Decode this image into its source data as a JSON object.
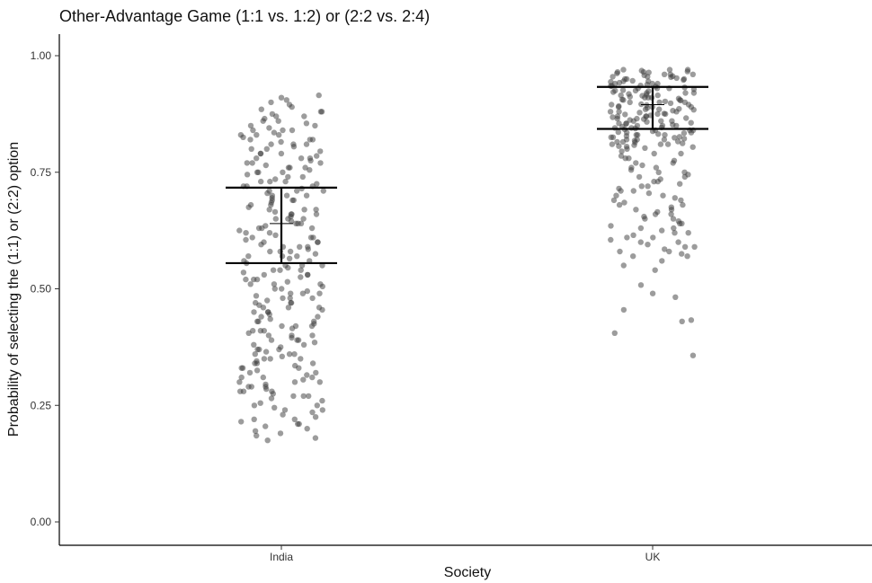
{
  "chart_data": {
    "type": "scatter",
    "title": "Other-Advantage Game (1:1 vs. 1:2) or (2:2 vs. 2:4)",
    "xlabel": "Society",
    "ylabel": "Probability of selecting the (1:1) or (2:2) option",
    "categories": [
      "India",
      "UK"
    ],
    "ylim": [
      0.0,
      1.05
    ],
    "yticks": [
      0.0,
      0.25,
      0.5,
      0.75,
      1.0
    ],
    "ytick_labels": [
      "0.00",
      "0.25",
      "0.50",
      "0.75",
      "1.00"
    ],
    "grid": false,
    "legend": "none",
    "point_color": "#3a3a3a",
    "summary": [
      {
        "category": "India",
        "mean": 0.64,
        "lower": 0.555,
        "upper": 0.717
      },
      {
        "category": "UK",
        "mean": 0.895,
        "lower": 0.843,
        "upper": 0.933
      }
    ],
    "series": [
      {
        "category": "India",
        "jitter_y": [
          0.915,
          0.91,
          0.905,
          0.9,
          0.895,
          0.89,
          0.885,
          0.88,
          0.875,
          0.87,
          0.865,
          0.86,
          0.855,
          0.85,
          0.845,
          0.84,
          0.835,
          0.83,
          0.825,
          0.82,
          0.815,
          0.81,
          0.805,
          0.8,
          0.795,
          0.79,
          0.785,
          0.78,
          0.775,
          0.77,
          0.765,
          0.76,
          0.755,
          0.75,
          0.745,
          0.74,
          0.735,
          0.73,
          0.725,
          0.72,
          0.715,
          0.71,
          0.705,
          0.7,
          0.695,
          0.69,
          0.685,
          0.68,
          0.675,
          0.67,
          0.665,
          0.66,
          0.655,
          0.65,
          0.645,
          0.64,
          0.635,
          0.63,
          0.625,
          0.62,
          0.615,
          0.61,
          0.605,
          0.6,
          0.595,
          0.59,
          0.585,
          0.58,
          0.575,
          0.57,
          0.565,
          0.56,
          0.555,
          0.55,
          0.545,
          0.54,
          0.535,
          0.53,
          0.525,
          0.52,
          0.515,
          0.51,
          0.505,
          0.5,
          0.495,
          0.49,
          0.485,
          0.48,
          0.475,
          0.47,
          0.465,
          0.46,
          0.455,
          0.45,
          0.445,
          0.44,
          0.435,
          0.43,
          0.425,
          0.42,
          0.415,
          0.41,
          0.405,
          0.4,
          0.395,
          0.39,
          0.385,
          0.38,
          0.375,
          0.37,
          0.365,
          0.36,
          0.355,
          0.35,
          0.345,
          0.34,
          0.335,
          0.33,
          0.325,
          0.32,
          0.315,
          0.31,
          0.305,
          0.3,
          0.295,
          0.29,
          0.285,
          0.28,
          0.275,
          0.27,
          0.265,
          0.26,
          0.255,
          0.25,
          0.245,
          0.24,
          0.235,
          0.23,
          0.225,
          0.22,
          0.215,
          0.21,
          0.205,
          0.2,
          0.195,
          0.19,
          0.185,
          0.18,
          0.175,
          0.86,
          0.84,
          0.82,
          0.8,
          0.78,
          0.76,
          0.74,
          0.72,
          0.7,
          0.68,
          0.66,
          0.64,
          0.62,
          0.6,
          0.58,
          0.56,
          0.54,
          0.52,
          0.5,
          0.48,
          0.46,
          0.44,
          0.42,
          0.4,
          0.38,
          0.36,
          0.34,
          0.32,
          0.3,
          0.28,
          0.85,
          0.83,
          0.81,
          0.79,
          0.77,
          0.75,
          0.73,
          0.71,
          0.69,
          0.67,
          0.65,
          0.63,
          0.61,
          0.59,
          0.57,
          0.55,
          0.53,
          0.51,
          0.49,
          0.47,
          0.45,
          0.43,
          0.41,
          0.39,
          0.37,
          0.35,
          0.33,
          0.31,
          0.29,
          0.27,
          0.88,
          0.82,
          0.76,
          0.7,
          0.64,
          0.58,
          0.52,
          0.46,
          0.4,
          0.34,
          0.28,
          0.22,
          0.87,
          0.81,
          0.75,
          0.69,
          0.63,
          0.57,
          0.51,
          0.45,
          0.39,
          0.33,
          0.27,
          0.21,
          0.84,
          0.78,
          0.72,
          0.66,
          0.6,
          0.54,
          0.48,
          0.42,
          0.36,
          0.3,
          0.24,
          0.83,
          0.77,
          0.71,
          0.65,
          0.59,
          0.53,
          0.47,
          0.41,
          0.35,
          0.29,
          0.79,
          0.73,
          0.67,
          0.61,
          0.55,
          0.49,
          0.43,
          0.37,
          0.31,
          0.25
        ]
      },
      {
        "category": "UK",
        "jitter_y": [
          0.97,
          0.968,
          0.966,
          0.964,
          0.962,
          0.96,
          0.958,
          0.956,
          0.954,
          0.952,
          0.95,
          0.948,
          0.946,
          0.944,
          0.942,
          0.94,
          0.938,
          0.936,
          0.934,
          0.932,
          0.93,
          0.928,
          0.926,
          0.924,
          0.922,
          0.92,
          0.918,
          0.916,
          0.914,
          0.912,
          0.91,
          0.908,
          0.906,
          0.904,
          0.902,
          0.9,
          0.898,
          0.896,
          0.894,
          0.892,
          0.89,
          0.888,
          0.886,
          0.884,
          0.882,
          0.88,
          0.878,
          0.876,
          0.874,
          0.872,
          0.87,
          0.868,
          0.866,
          0.864,
          0.862,
          0.86,
          0.858,
          0.856,
          0.854,
          0.852,
          0.85,
          0.848,
          0.846,
          0.844,
          0.842,
          0.84,
          0.838,
          0.836,
          0.834,
          0.832,
          0.83,
          0.828,
          0.826,
          0.824,
          0.822,
          0.82,
          0.818,
          0.816,
          0.814,
          0.812,
          0.81,
          0.808,
          0.806,
          0.804,
          0.802,
          0.8,
          0.97,
          0.965,
          0.96,
          0.955,
          0.95,
          0.945,
          0.94,
          0.935,
          0.93,
          0.925,
          0.92,
          0.915,
          0.91,
          0.905,
          0.9,
          0.895,
          0.89,
          0.885,
          0.88,
          0.875,
          0.87,
          0.865,
          0.86,
          0.855,
          0.85,
          0.845,
          0.84,
          0.835,
          0.83,
          0.825,
          0.82,
          0.815,
          0.81,
          0.805,
          0.97,
          0.96,
          0.95,
          0.94,
          0.93,
          0.92,
          0.91,
          0.9,
          0.89,
          0.88,
          0.87,
          0.86,
          0.85,
          0.84,
          0.83,
          0.82,
          0.81,
          0.965,
          0.955,
          0.945,
          0.935,
          0.925,
          0.915,
          0.905,
          0.895,
          0.885,
          0.875,
          0.865,
          0.855,
          0.845,
          0.835,
          0.825,
          0.815,
          0.795,
          0.79,
          0.785,
          0.78,
          0.775,
          0.77,
          0.765,
          0.76,
          0.755,
          0.75,
          0.745,
          0.74,
          0.735,
          0.73,
          0.725,
          0.72,
          0.715,
          0.71,
          0.705,
          0.7,
          0.695,
          0.69,
          0.685,
          0.68,
          0.675,
          0.67,
          0.665,
          0.66,
          0.655,
          0.65,
          0.645,
          0.64,
          0.635,
          0.63,
          0.625,
          0.62,
          0.615,
          0.61,
          0.605,
          0.6,
          0.595,
          0.59,
          0.585,
          0.58,
          0.575,
          0.57,
          0.56,
          0.55,
          0.54,
          0.79,
          0.77,
          0.75,
          0.73,
          0.71,
          0.69,
          0.67,
          0.65,
          0.63,
          0.61,
          0.59,
          0.57,
          0.78,
          0.76,
          0.74,
          0.72,
          0.7,
          0.68,
          0.66,
          0.64,
          0.62,
          0.6,
          0.58,
          0.508,
          0.49,
          0.482,
          0.455,
          0.433,
          0.43,
          0.405,
          0.357
        ]
      }
    ]
  }
}
